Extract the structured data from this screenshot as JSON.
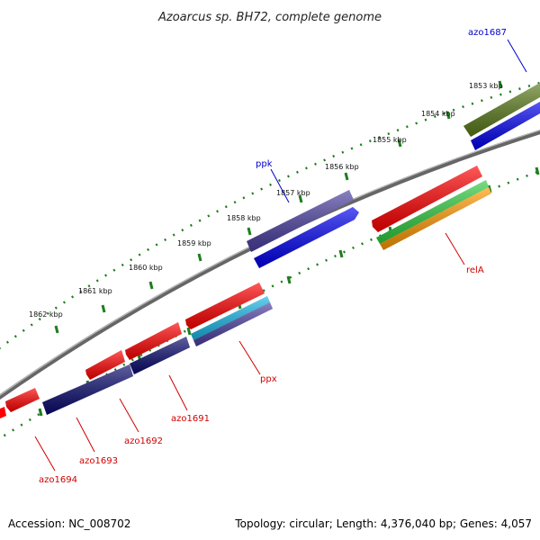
{
  "title": "Azoarcus sp. BH72, complete genome",
  "footer": {
    "accession": "Accession: NC_008702",
    "topology": "Topology: circular; Length: 4,376,040 bp; Genes: 4,057"
  },
  "kbp_labels": [
    "1853 kbp",
    "1854 kbp",
    "1855 kbp",
    "1856 kbp",
    "1857 kbp",
    "1858 kbp",
    "1859 kbp",
    "1860 kbp",
    "1861 kbp",
    "1862 kbp"
  ],
  "gene_labels": {
    "azo1687": "azo1687",
    "ppk": "ppk",
    "relA": "relA",
    "ppx": "ppx",
    "azo1691": "azo1691",
    "azo1692": "azo1692",
    "azo1693": "azo1693",
    "azo1694": "azo1694"
  },
  "colors": {
    "forward_gene": "#ff0000",
    "reverse_gene": "#0000ff",
    "dark_navy": "#0a0a6e",
    "slate_blue": "#4a3fa0",
    "olive": "#5a7a1a",
    "cyan": "#19b8e6",
    "green": "#2ecc40",
    "orange": "#ff9900",
    "backbone": "#888888",
    "tick": "#1e7d1e",
    "label_red": "#d00000",
    "label_blue": "#0000cc"
  }
}
